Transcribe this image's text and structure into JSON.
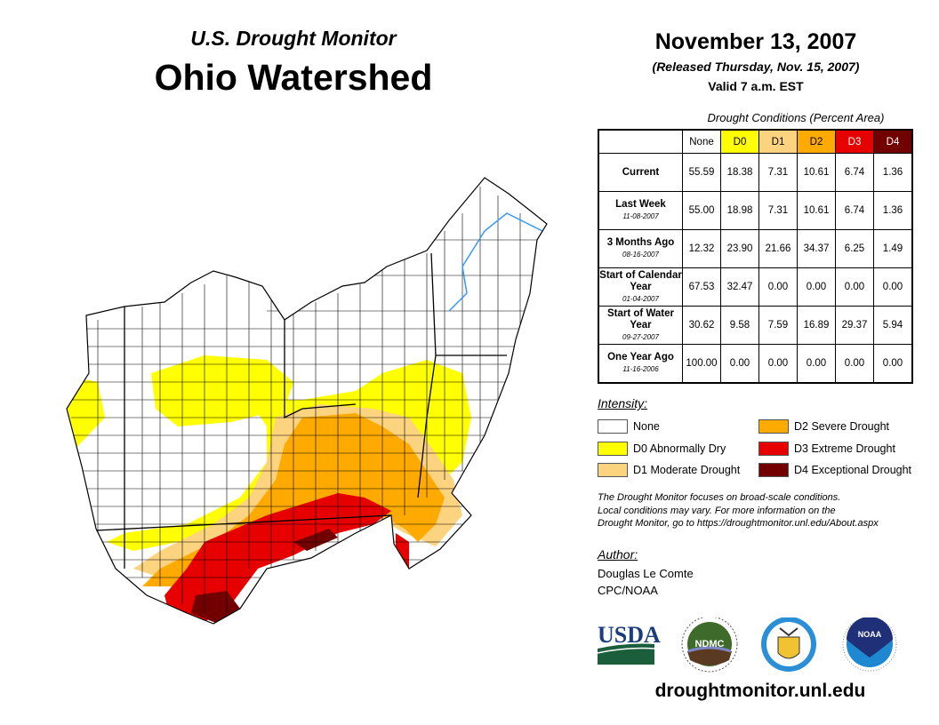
{
  "header": {
    "subtitle": "U.S. Drought Monitor",
    "title": "Ohio Watershed",
    "date": "November 13, 2007",
    "released": "(Released Thursday, Nov. 15, 2007)",
    "valid": "Valid 7 a.m. EST"
  },
  "table": {
    "caption": "Drought Conditions (Percent Area)",
    "columns": [
      "None",
      "D0",
      "D1",
      "D2",
      "D3",
      "D4"
    ],
    "rows": [
      {
        "label": "Current",
        "date": "",
        "values": [
          "55.59",
          "18.38",
          "7.31",
          "10.61",
          "6.74",
          "1.36"
        ]
      },
      {
        "label": "Last Week",
        "date": "11-08-2007",
        "values": [
          "55.00",
          "18.98",
          "7.31",
          "10.61",
          "6.74",
          "1.36"
        ]
      },
      {
        "label": "3 Months Ago",
        "date": "08-16-2007",
        "values": [
          "12.32",
          "23.90",
          "21.66",
          "34.37",
          "6.25",
          "1.49"
        ]
      },
      {
        "label": "Start of Calendar Year",
        "date": "01-04-2007",
        "values": [
          "67.53",
          "32.47",
          "0.00",
          "0.00",
          "0.00",
          "0.00"
        ]
      },
      {
        "label": "Start of Water Year",
        "date": "09-27-2007",
        "values": [
          "30.62",
          "9.58",
          "7.59",
          "16.89",
          "29.37",
          "5.94"
        ]
      },
      {
        "label": "One Year Ago",
        "date": "11-16-2006",
        "values": [
          "100.00",
          "0.00",
          "0.00",
          "0.00",
          "0.00",
          "0.00"
        ]
      }
    ]
  },
  "legend": {
    "title": "Intensity:",
    "items": [
      {
        "label": "None",
        "color": "#ffffff"
      },
      {
        "label": "D0 Abnormally Dry",
        "color": "#ffff00"
      },
      {
        "label": "D1 Moderate Drought",
        "color": "#fcd37f"
      },
      {
        "label": "D2 Severe Drought",
        "color": "#ffaa00"
      },
      {
        "label": "D3 Extreme Drought",
        "color": "#e60000"
      },
      {
        "label": "D4 Exceptional Drought",
        "color": "#730000"
      }
    ]
  },
  "note": [
    "The Drought Monitor focuses on broad-scale conditions.",
    "Local conditions may vary. For more information on the",
    "Drought Monitor, go to https://droughtmonitor.unl.edu/About.aspx"
  ],
  "author": {
    "label": "Author:",
    "name": "Douglas Le Comte",
    "org": "CPC/NOAA"
  },
  "logos": {
    "usda": "USDA",
    "ndmc": "NDMC",
    "noaa": "NOAA"
  },
  "footer_url": "droughtmonitor.unl.edu"
}
